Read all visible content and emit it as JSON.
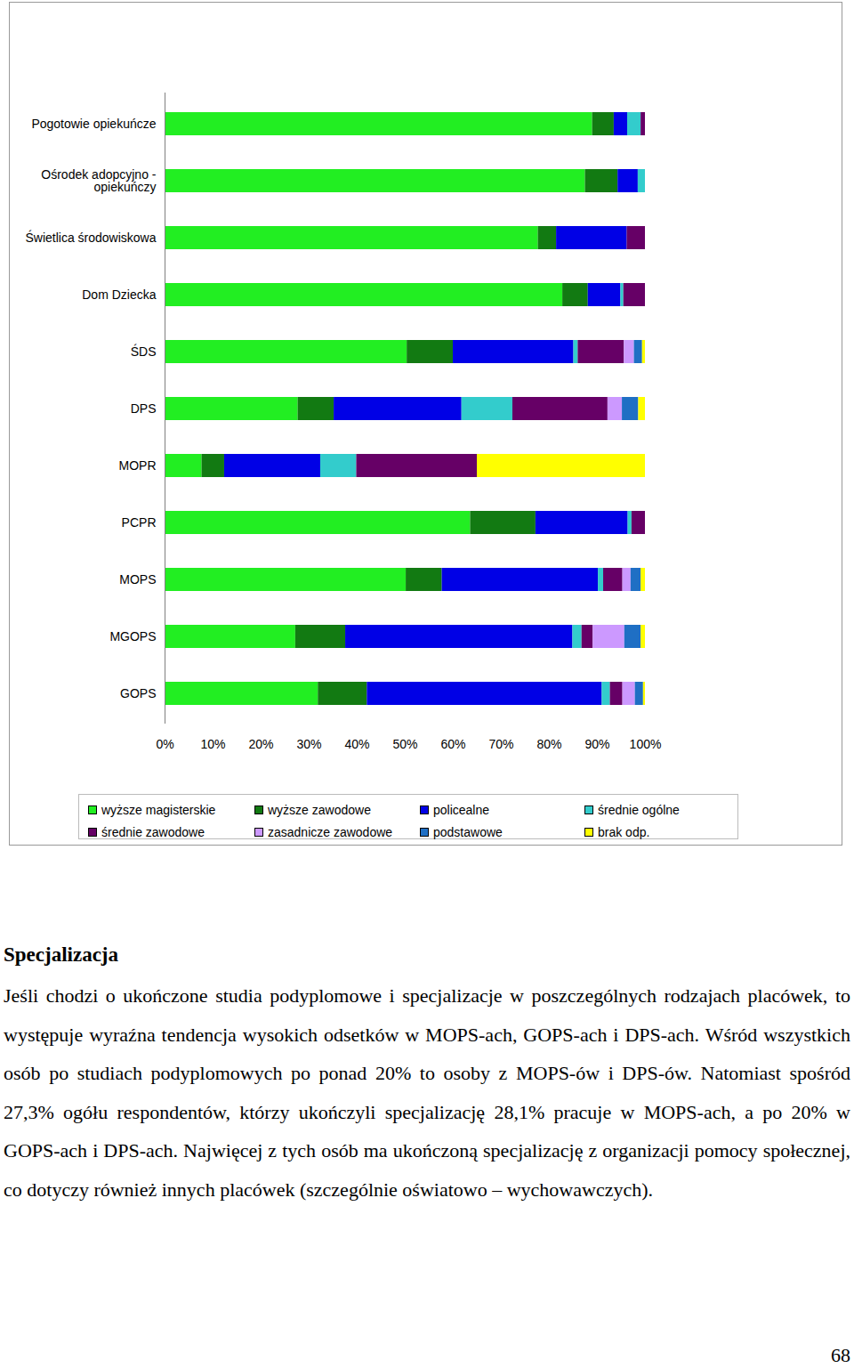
{
  "chart_data": {
    "type": "bar",
    "orientation": "horizontal",
    "stacked": true,
    "grid": false,
    "legend": "bottom",
    "categories": [
      "Pogotowie opiekuńcze",
      "Ośrodek adopcyjno -\nopiekuńczy",
      "Świetlica środowiskowa",
      "Dom Dziecka",
      "ŚDS",
      "DPS",
      "MOPR",
      "PCPR",
      "MOPS",
      "MGOPS",
      "GOPS"
    ],
    "series": [
      {
        "name": "wyższe magisterskie",
        "color": "#22ee22",
        "values": [
          89,
          87.5,
          77.7,
          82.8,
          50.4,
          27.7,
          7.7,
          63.6,
          50.2,
          27.2,
          31.9
        ]
      },
      {
        "name": "wyższe zawodowe",
        "color": "#127a12",
        "values": [
          4.5,
          6.8,
          3.8,
          5.3,
          9.6,
          7.5,
          4.7,
          13.6,
          7.5,
          10.4,
          10.2
        ]
      },
      {
        "name": "policealne",
        "color": "#0000e6",
        "values": [
          2.8,
          4.2,
          14.7,
          6.8,
          25.1,
          26.6,
          20,
          19.2,
          32.5,
          47.3,
          48.9
        ]
      },
      {
        "name": "średnie ogólne",
        "color": "#33cccc",
        "values": [
          2.8,
          1.5,
          0,
          0.6,
          0.9,
          10.6,
          7.5,
          0.8,
          1.1,
          1.9,
          1.7
        ]
      },
      {
        "name": "średnie zawodowe",
        "color": "#660066",
        "values": [
          0.9,
          0,
          3.8,
          4.5,
          9.6,
          19.8,
          25.1,
          2.8,
          4,
          2.3,
          2.6
        ]
      },
      {
        "name": "zasadnicze zawodowe",
        "color": "#cc99ff",
        "values": [
          0,
          0,
          0,
          0,
          2.1,
          3,
          0,
          0,
          1.7,
          6.6,
          2.6
        ]
      },
      {
        "name": "podstawowe",
        "color": "#1f6fc4",
        "values": [
          0,
          0,
          0,
          0,
          1.7,
          3.4,
          0,
          0,
          2.1,
          3.4,
          1.7
        ]
      },
      {
        "name": "brak odp.",
        "color": "#ffff00",
        "values": [
          0,
          0,
          0,
          0,
          0.6,
          1.4,
          35,
          0,
          0.9,
          0.9,
          0.4
        ]
      }
    ],
    "xlim": [
      0,
      100
    ],
    "xticks": [
      {
        "value": 0,
        "label": "0%"
      },
      {
        "value": 10,
        "label": "10%"
      },
      {
        "value": 20,
        "label": "20%"
      },
      {
        "value": 30,
        "label": "30%"
      },
      {
        "value": 40,
        "label": "40%"
      },
      {
        "value": 50,
        "label": "50%"
      },
      {
        "value": 60,
        "label": "60%"
      },
      {
        "value": 70,
        "label": "70%"
      },
      {
        "value": 80,
        "label": "80%"
      },
      {
        "value": 90,
        "label": "90%"
      },
      {
        "value": 100,
        "label": "100%"
      }
    ]
  },
  "document": {
    "heading": "Specjalizacja",
    "paragraph": "Jeśli chodzi o ukończone studia podyplomowe i specjalizacje w poszczególnych rodzajach placówek, to występuje wyraźna tendencja wysokich odsetków w MOPS-ach, GOPS-ach i DPS-ach. Wśród wszystkich osób po studiach podyplomowych po ponad 20% to osoby z MOPS-ów i DPS-ów. Natomiast spośród 27,3% ogółu respondentów, którzy ukończyli specjalizację 28,1% pracuje w MOPS-ach, a po 20% w GOPS-ach i DPS-ach. Najwięcej z tych osób ma ukończoną specjalizację z organizacji pomocy społecznej, co dotyczy również innych placówek (szczególnie oświatowo – wychowawczych).",
    "page_number": 68
  }
}
